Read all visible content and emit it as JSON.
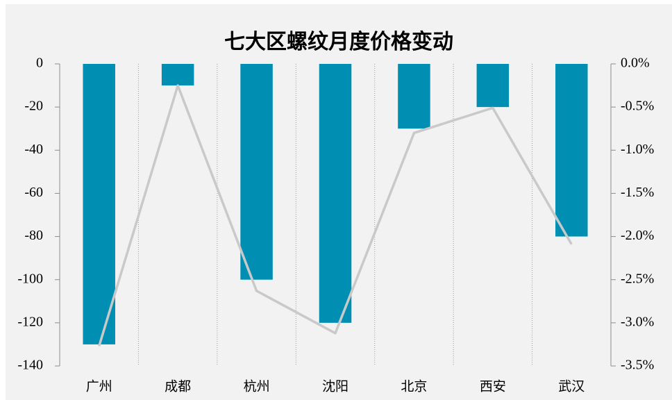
{
  "chart_data": {
    "type": "bar",
    "title": "七大区螺纹月度价格变动",
    "categories": [
      "广州",
      "成都",
      "杭州",
      "沈阳",
      "北京",
      "西安",
      "武汉"
    ],
    "series": [
      {
        "type": "bar",
        "color": "#008fb3",
        "values": [
          -130,
          -10,
          -100,
          -120,
          -30,
          -20,
          -80
        ]
      },
      {
        "type": "line",
        "axis": "y2",
        "color": "#c9c9c9",
        "values": [
          -3.27,
          -0.25,
          -2.63,
          -3.12,
          -0.8,
          -0.51,
          -2.09
        ]
      }
    ],
    "ylim": [
      -140,
      0
    ],
    "yticks": [
      0,
      -20,
      -40,
      -60,
      -80,
      -100,
      -120,
      -140
    ],
    "y2lim": [
      -3.5,
      0
    ],
    "y2ticks": [
      {
        "value": 0,
        "label": "0.0%"
      },
      {
        "value": -0.5,
        "label": "-0.5%"
      },
      {
        "value": -1,
        "label": "-1.0%"
      },
      {
        "value": -1.5,
        "label": "-1.5%"
      },
      {
        "value": -2,
        "label": "-2.0%"
      },
      {
        "value": -2.5,
        "label": "-2.5%"
      },
      {
        "value": -3,
        "label": "-3.0%"
      },
      {
        "value": -3.5,
        "label": "-3.5%"
      }
    ]
  }
}
